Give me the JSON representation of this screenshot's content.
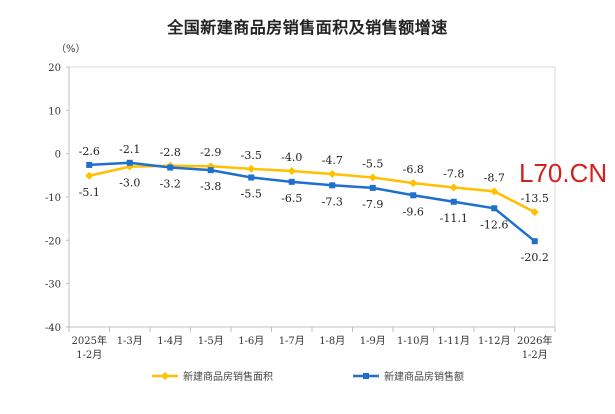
{
  "chart_data": {
    "type": "line",
    "title": "全国新建商品房销售面积及销售额增速",
    "ylabel": "（%）",
    "xlabel": "",
    "ylim": [
      -40,
      20
    ],
    "yticks": [
      20,
      10,
      0,
      -10,
      -20,
      -30,
      -40
    ],
    "categories": [
      [
        "2025年",
        "1-2月"
      ],
      [
        "1-3月"
      ],
      [
        "1-4月"
      ],
      [
        "1-5月"
      ],
      [
        "1-6月"
      ],
      [
        "1-7月"
      ],
      [
        "1-8月"
      ],
      [
        "1-9月"
      ],
      [
        "1-10月"
      ],
      [
        "1-11月"
      ],
      [
        "1-12月"
      ],
      [
        "2026年",
        "1-2月"
      ]
    ],
    "series": [
      {
        "name": "新建商品房销售面积",
        "color": "#FFC000",
        "marker": "diamond",
        "values": [
          -5.1,
          -3.0,
          -2.8,
          -2.9,
          -3.5,
          -4.0,
          -4.7,
          -5.5,
          -6.8,
          -7.8,
          -8.7,
          -13.5
        ]
      },
      {
        "name": "新建商品房销售额",
        "color": "#1F6FCF",
        "marker": "square",
        "values": [
          -2.6,
          -2.1,
          -3.2,
          -3.8,
          -5.5,
          -6.5,
          -7.3,
          -7.9,
          -9.6,
          -11.1,
          -12.6,
          -20.2
        ]
      }
    ],
    "legend_position": "bottom",
    "grid": false
  },
  "watermark": "L70.CN"
}
